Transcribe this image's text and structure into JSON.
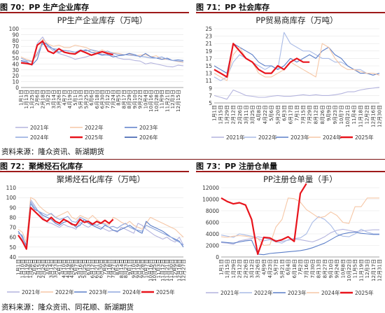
{
  "figures": [
    {
      "title": "图 70：PP 生产企业库存"
    },
    {
      "title": "图 71：PP 社会库存"
    },
    {
      "title": "图 72：聚烯烃石化库存"
    },
    {
      "title": "图 73：PP 注册仓单量"
    }
  ],
  "sources": [
    "资料来源：隆众资讯、新湖期货",
    "资料来源：隆众资讯、同花顺、新湖期货"
  ],
  "chart_data": [
    {
      "type": "line",
      "title": "PP生产企业库存（万吨）",
      "ylim": [
        0,
        100
      ],
      "yticks": [
        0,
        10,
        20,
        30,
        40,
        50,
        60,
        70,
        80,
        90,
        100
      ],
      "x": [
        "1月1日",
        "1月13日",
        "1月25日",
        "2月6日",
        "2月18日",
        "3月2日",
        "3月14日",
        "3月26日",
        "4月7日",
        "4月19日",
        "5月1日",
        "5月13日",
        "5月25日",
        "6月6日",
        "6月18日",
        "6月30日",
        "7月12日",
        "7月24日",
        "8月5日",
        "8月17日",
        "8月29日",
        "9月10日",
        "9月22日",
        "10月4日",
        "10月16日",
        "10月28日",
        "11月9日",
        "11月21日",
        "12月3日",
        "12月15日",
        "12月27日"
      ],
      "x_ticks_shown": [
        "1月1日",
        "1月13日",
        "1月25日",
        "2月6日",
        "2月18日",
        "3月2日",
        "3月14日",
        "3月26日",
        "4月7日",
        "4月19日",
        "5月1日",
        "5月13日",
        "5月25日",
        "6月6日",
        "6月18日",
        "6月30日",
        "7月12日",
        "7月24日",
        "8月5日",
        "8月17日",
        "8月29日",
        "9月10日",
        "9月22日",
        "10月4日",
        "10月16日",
        "10月28日",
        "11月9日",
        "11月21日",
        "12月3日",
        "12月15日"
      ],
      "series": [
        {
          "name": "2021年",
          "color": "#b4b4de",
          "width": 1.1,
          "values": [
            45,
            42,
            40,
            75,
            86,
            70,
            62,
            58,
            55,
            52,
            48,
            50,
            52,
            55,
            58,
            57,
            55,
            55,
            50,
            48,
            48,
            46,
            45,
            40,
            42,
            40,
            38,
            36,
            35,
            38,
            37
          ]
        },
        {
          "name": "2022年",
          "color": "#f6c7a6",
          "width": 1.1,
          "values": [
            52,
            48,
            45,
            55,
            82,
            74,
            70,
            72,
            68,
            68,
            72,
            70,
            68,
            64,
            60,
            64,
            60,
            59,
            58,
            56,
            57,
            54,
            55,
            56,
            52,
            54,
            48,
            48,
            46,
            44,
            43
          ]
        },
        {
          "name": "2023年",
          "color": "#5b7ec8",
          "width": 1.1,
          "values": [
            46,
            44,
            38,
            48,
            78,
            72,
            65,
            60,
            63,
            62,
            60,
            62,
            64,
            60,
            58,
            55,
            56,
            52,
            54,
            55,
            58,
            56,
            52,
            58,
            52,
            50,
            48,
            50,
            46,
            47,
            46
          ]
        },
        {
          "name": "2024年",
          "color": "#8fa7dd",
          "width": 1.1,
          "values": [
            50,
            46,
            44,
            58,
            74,
            69,
            66,
            65,
            63,
            62,
            60,
            64,
            62,
            64,
            62,
            60,
            62,
            58,
            56,
            56,
            55,
            54,
            53,
            52,
            50,
            50,
            52,
            48,
            46,
            45,
            44
          ]
        },
        {
          "name": "2025年",
          "color": "#e8141c",
          "width": 2.2,
          "values": [
            42,
            41,
            39,
            72,
            79,
            62,
            58,
            66,
            60,
            58,
            57,
            63,
            59,
            55,
            58,
            61,
            58,
            56,
            null,
            null,
            null,
            null,
            null,
            null,
            null,
            null,
            null,
            null,
            null,
            null,
            null
          ]
        },
        {
          "name": "2026年",
          "color": "#2f53a8",
          "width": 1.1,
          "values": [
            null,
            null,
            null,
            null,
            null,
            null,
            null,
            null,
            null,
            null,
            null,
            null,
            null,
            null,
            null,
            null,
            null,
            null,
            null,
            null,
            null,
            null,
            null,
            null,
            null,
            null,
            null,
            null,
            null,
            null,
            null
          ]
        }
      ]
    },
    {
      "type": "line",
      "title": "PP贸易商库存（万吨）",
      "ylim": [
        5,
        25
      ],
      "yticks": [
        5,
        7,
        9,
        11,
        13,
        15,
        17,
        19,
        21,
        23,
        25
      ],
      "x": [
        "1月1日",
        "1月15日",
        "1月29日",
        "2月12日",
        "2月26日",
        "3月11日",
        "3月25日",
        "4月8日",
        "4月22日",
        "5月6日",
        "5月20日",
        "6月3日",
        "6月17日",
        "7月1日",
        "7月15日",
        "7月29日",
        "8月12日",
        "8月26日",
        "9月9日",
        "9月23日",
        "10月7日",
        "10月21日",
        "11月4日",
        "11月18日",
        "12月2日",
        "12月16日",
        "12月30日"
      ],
      "x_ticks_shown": [
        "1月1日",
        "1月15日",
        "1月29日",
        "2月12日",
        "2月26日",
        "3月11日",
        "3月25日",
        "4月8日",
        "4月22日",
        "5月6日",
        "5月20日",
        "6月3日",
        "6月17日",
        "7月1日",
        "7月15日",
        "7月29日",
        "8月12日",
        "8月26日",
        "9月9日",
        "9月23日",
        "10月7日",
        "10月21日",
        "11月4日",
        "11月18日",
        "12月2日",
        "12月16日",
        "12月30日"
      ],
      "series": [
        {
          "name": "2021年",
          "color": "#b4b4de",
          "width": 1.1,
          "values": [
            7,
            6.5,
            6,
            8.5,
            7.8,
            7,
            6.8,
            6.5,
            6.5,
            6.8,
            7,
            6.8,
            6.8,
            7,
            7.2,
            7,
            7.2,
            7,
            7,
            7.2,
            7.5,
            8,
            8,
            8.5,
            8.8,
            9,
            9.2
          ]
        },
        {
          "name": "2022年",
          "color": "#a9bbe6",
          "width": 1.1,
          "values": [
            12,
            11,
            12,
            16,
            18,
            17,
            16,
            15,
            14,
            15,
            14,
            24,
            21,
            20,
            19,
            19,
            18,
            17,
            17,
            16,
            16,
            15,
            14,
            14,
            13,
            13,
            12.5
          ]
        },
        {
          "name": "2023年",
          "color": "#5b7ec8",
          "width": 1.1,
          "values": [
            15,
            14,
            13,
            21,
            20,
            19,
            18,
            16,
            15,
            15,
            14,
            15,
            17,
            16,
            17,
            18,
            17,
            19,
            20,
            18,
            17,
            15,
            14,
            13,
            13,
            12.5,
            13
          ]
        },
        {
          "name": "2024年",
          "color": "#f6c7a6",
          "width": 1.1,
          "values": [
            13,
            12,
            11,
            18,
            20,
            17,
            16,
            13,
            12,
            12,
            13,
            14,
            16,
            15,
            14,
            13,
            12,
            21,
            20,
            17,
            15,
            14,
            14,
            13.5,
            13,
            13,
            12.5
          ]
        },
        {
          "name": "2025年",
          "color": "#e8141c",
          "width": 2.2,
          "values": [
            14,
            13,
            12,
            21,
            19,
            17,
            16,
            14,
            13,
            13,
            15,
            14,
            16,
            17,
            16,
            16,
            null,
            null,
            null,
            null,
            null,
            null,
            null,
            null,
            null,
            null,
            null
          ]
        }
      ]
    },
    {
      "type": "line",
      "title": "聚烯烃石化库存（万吨）",
      "ylim": [
        40,
        110
      ],
      "yticks": [
        40,
        50,
        60,
        70,
        80,
        90,
        100,
        110
      ],
      "x": [
        "1月1日",
        "1月10日",
        "1月19日",
        "1月28日",
        "2月6日",
        "2月15日",
        "2月24日",
        "3月5日",
        "3月14日",
        "3月23日",
        "4月1日",
        "4月10日",
        "4月19日",
        "4月28日",
        "5月7日",
        "5月16日",
        "5月25日",
        "6月3日",
        "6月12日",
        "6月21日",
        "6月30日",
        "7月9日",
        "7月18日",
        "7月27日",
        "8月5日",
        "8月14日",
        "8月23日",
        "9月1日",
        "9月10日",
        "9月19日",
        "9月28日",
        "10月7日",
        "10月16日",
        "10月25日",
        "11月3日",
        "11月12日",
        "11月21日",
        "11月30日",
        "12月9日",
        "12月18日",
        "12月27日"
      ],
      "x_ticks_shown": [
        "1月1日",
        "1月10日",
        "1月19日",
        "1月28日",
        "2月6日",
        "2月15日",
        "2月24日",
        "3月5日",
        "3月14日",
        "3月23日",
        "4月1日",
        "4月10日",
        "4月19日",
        "4月28日",
        "5月7日",
        "5月16日",
        "5月25日",
        "6月3日",
        "6月12日",
        "6月21日",
        "6月30日",
        "7月9日",
        "7月18日",
        "7月27日",
        "8月5日",
        "8月14日",
        "8月23日",
        "9月1日",
        "9月10日",
        "9月19日",
        "9月28日",
        "10月7日",
        "10月16日",
        "10月25日",
        "11月3日",
        "11月12日",
        "11月21日",
        "11月30日",
        "12月9日",
        "12月18日",
        "12月27日"
      ],
      "series": [
        {
          "name": "2021年",
          "color": "#b4b4de",
          "width": 1.1,
          "values": [
            62,
            58,
            50,
            98,
            92,
            85,
            80,
            75,
            74,
            72,
            70,
            73,
            71,
            70,
            68,
            75,
            72,
            70,
            73,
            72,
            70,
            68,
            66,
            67,
            65,
            70,
            68,
            66,
            64,
            74,
            72,
            68,
            65,
            62,
            60,
            58,
            60,
            57,
            55,
            60,
            52
          ]
        },
        {
          "name": "2022年",
          "color": "#f6c7a6",
          "width": 1.1,
          "values": [
            68,
            65,
            55,
            100,
            98,
            92,
            88,
            85,
            83,
            80,
            82,
            84,
            86,
            80,
            78,
            82,
            80,
            78,
            82,
            78,
            75,
            74,
            72,
            80,
            78,
            75,
            73,
            76,
            72,
            70,
            68,
            74,
            80,
            78,
            76,
            74,
            72,
            70,
            68,
            64,
            60
          ]
        },
        {
          "name": "2023年",
          "color": "#5b7ec8",
          "width": 1.1,
          "values": [
            66,
            60,
            52,
            94,
            88,
            86,
            82,
            80,
            78,
            74,
            72,
            75,
            76,
            74,
            70,
            72,
            78,
            74,
            72,
            70,
            68,
            72,
            70,
            67,
            66,
            68,
            70,
            72,
            69,
            66,
            64,
            76,
            72,
            70,
            68,
            66,
            63,
            60,
            58,
            56,
            50
          ]
        },
        {
          "name": "2024年",
          "color": "#8fa7dd",
          "width": 1.1,
          "values": [
            64,
            62,
            50,
            96,
            90,
            86,
            84,
            82,
            84,
            80,
            78,
            79,
            81,
            76,
            75,
            80,
            78,
            76,
            74,
            72,
            74,
            73,
            70,
            71,
            69,
            72,
            74,
            70,
            68,
            67,
            66,
            72,
            70,
            68,
            66,
            64,
            62,
            60,
            57,
            55,
            52
          ]
        },
        {
          "name": "2025年",
          "color": "#e8141c",
          "width": 2.2,
          "values": [
            62,
            56,
            48,
            90,
            86,
            82,
            78,
            76,
            80,
            76,
            74,
            78,
            76,
            73,
            72,
            78,
            75,
            76,
            73,
            76,
            74,
            77,
            74,
            78,
            null,
            null,
            null,
            null,
            null,
            null,
            null,
            null,
            null,
            null,
            null,
            null,
            null,
            null,
            null,
            null,
            null
          ]
        }
      ]
    },
    {
      "type": "line",
      "title": "PP注册仓单量（手）",
      "ylim": [
        0,
        12000
      ],
      "yticks": [
        0,
        2000,
        4000,
        6000,
        8000,
        10000,
        12000
      ],
      "x": [
        "1月1日",
        "1月15日",
        "1月29日",
        "2月12日",
        "2月26日",
        "3月12日",
        "3月26日",
        "4月9日",
        "4月23日",
        "5月7日",
        "5月21日",
        "6月4日",
        "6月18日",
        "7月2日",
        "7月16日",
        "7月30日",
        "8月13日",
        "8月27日",
        "9月10日",
        "9月24日",
        "10月8日",
        "10月22日",
        "11月5日",
        "11月19日",
        "12月3日",
        "12月17日",
        "12月31日"
      ],
      "x_ticks_shown": [
        "1月1日",
        "1月15日",
        "1月29日",
        "2月12日",
        "2月26日",
        "3月12日",
        "3月26日",
        "4月9日",
        "4月23日",
        "5月7日",
        "5月21日",
        "6月4日",
        "6月18日",
        "7月2日",
        "7月16日",
        "7月30日",
        "8月13日",
        "8月27日",
        "9月10日",
        "9月24日",
        "10月8日",
        "10月22日",
        "11月5日",
        "11月19日",
        "12月3日",
        "12月17日",
        "12月31日"
      ],
      "series": [
        {
          "name": "2021年",
          "color": "#b4b4de",
          "width": 1.1,
          "values": [
            2500,
            2400,
            2200,
            2800,
            3000,
            3200,
            3500,
            3300,
            3100,
            2900,
            2700,
            2900,
            3100,
            3000,
            2800,
            2600,
            3000,
            3500,
            4200,
            4600,
            4800,
            4600,
            4400,
            4500,
            4600,
            4700,
            4700
          ]
        },
        {
          "name": "2022年",
          "color": "#a9bbe6",
          "width": 1.1,
          "values": [
            3800,
            3600,
            3400,
            4000,
            3800,
            3600,
            3200,
            2800,
            3000,
            2600,
            2400,
            3000,
            3200,
            3300,
            4000,
            6000,
            7000,
            6500,
            5500,
            4000,
            3600,
            3500,
            4000,
            4800,
            4300,
            4000,
            4000
          ]
        },
        {
          "name": "2023年",
          "color": "#5b7ec8",
          "width": 1.1,
          "values": [
            2600,
            2500,
            2400,
            2600,
            2800,
            2900,
            500,
            400,
            600,
            700,
            800,
            900,
            1000,
            1100,
            1300,
            1600,
            2000,
            2400,
            3000,
            3600,
            4000,
            4200,
            4300,
            4100,
            4000,
            3900,
            3900
          ]
        },
        {
          "name": "2024年",
          "color": "#f6c7a6",
          "width": 1.1,
          "values": [
            3500,
            3400,
            3600,
            3700,
            3600,
            3400,
            3200,
            2000,
            2100,
            5200,
            6500,
            10200,
            10100,
            9500,
            8200,
            7500,
            6800,
            7000,
            7800,
            7200,
            6000,
            5800,
            8700,
            8700,
            10200,
            10200,
            10200
          ]
        },
        {
          "name": "2025年",
          "color": "#e8141c",
          "width": 2.2,
          "values": [
            10200,
            9600,
            9200,
            9400,
            9000,
            6500,
            500,
            3400,
            3300,
            2700,
            3000,
            3500,
            2700,
            11000,
            12700,
            null,
            null,
            null,
            null,
            null,
            null,
            null,
            null,
            null,
            null,
            null,
            null
          ]
        }
      ]
    }
  ]
}
